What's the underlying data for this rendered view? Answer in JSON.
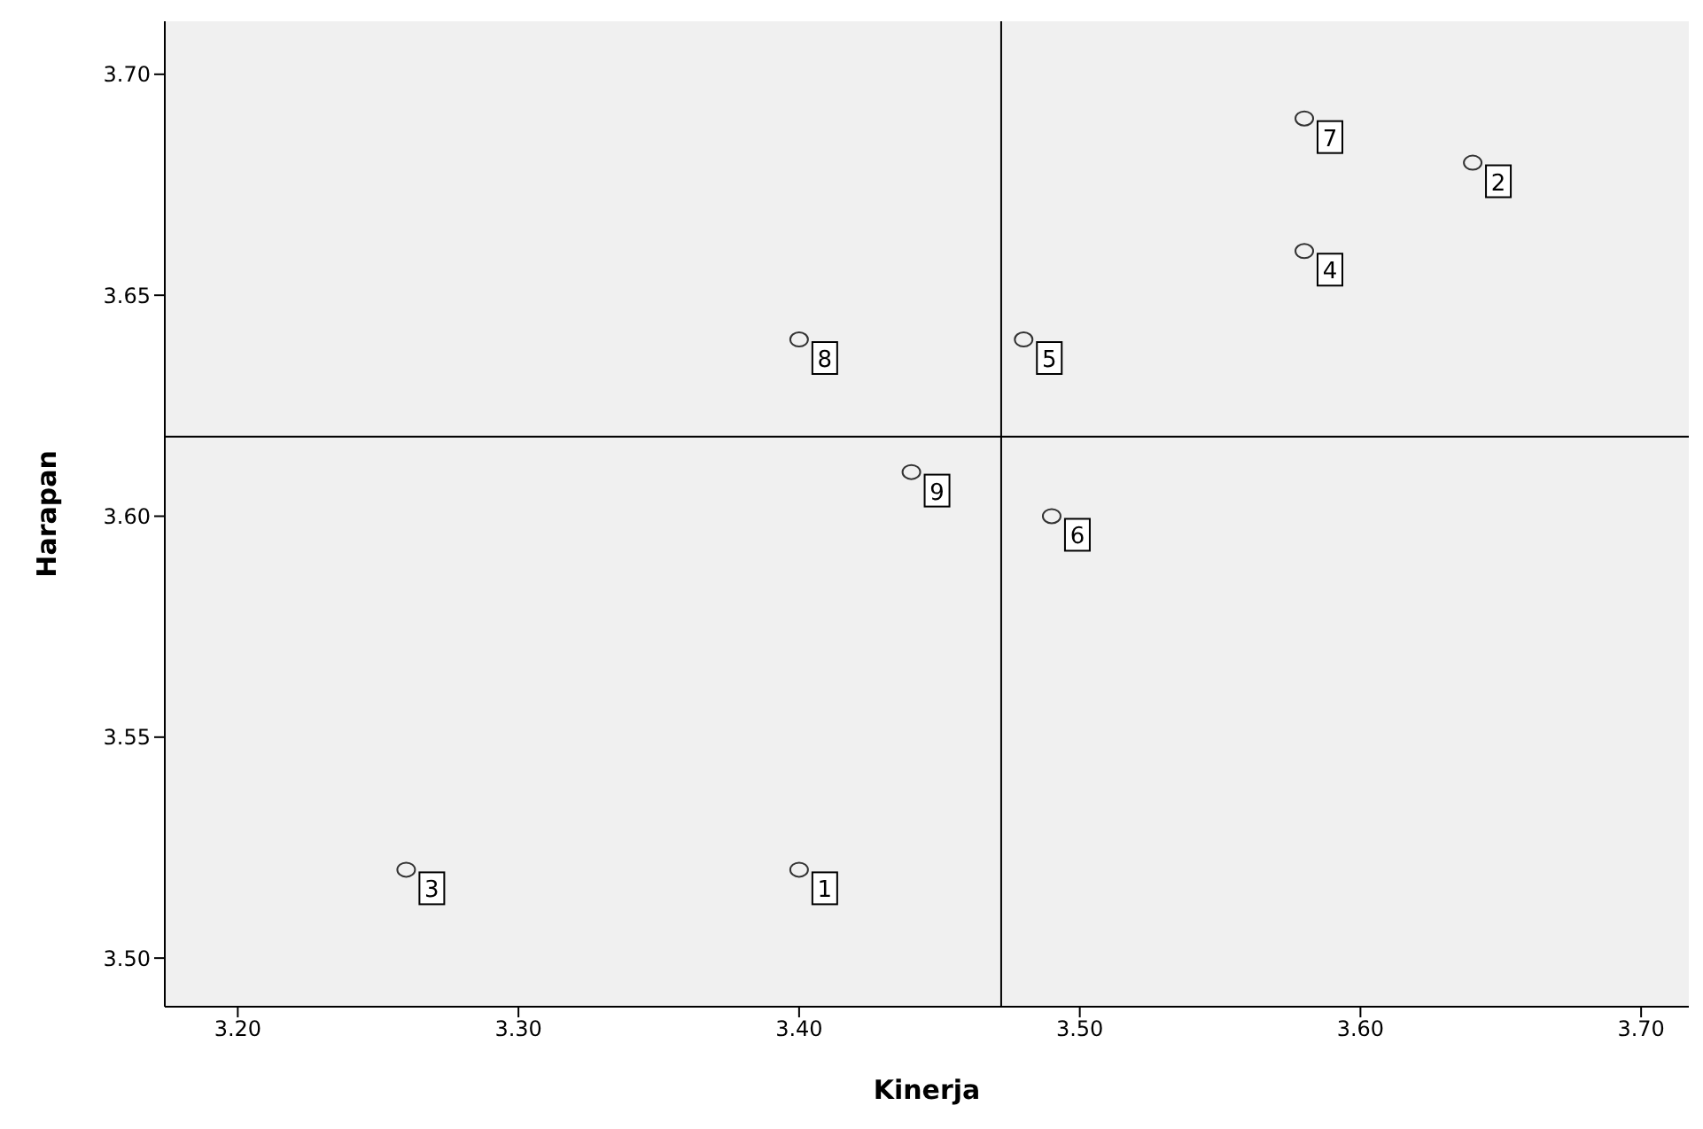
{
  "chart_data": {
    "type": "scatter",
    "xlabel": "Kinerja",
    "ylabel": "Harapan",
    "x": [
      3.4,
      3.64,
      3.26,
      3.58,
      3.48,
      3.49,
      3.58,
      3.4,
      3.44
    ],
    "series": [
      {
        "color": "#333333",
        "values": [
          3.52,
          3.68,
          3.52,
          3.66,
          3.64,
          3.6,
          3.69,
          3.64,
          3.61
        ]
      }
    ],
    "annotations": [
      {
        "text": "1",
        "x": 3.4,
        "y": 3.52
      },
      {
        "text": "2",
        "x": 3.64,
        "y": 3.68
      },
      {
        "text": "3",
        "x": 3.26,
        "y": 3.52
      },
      {
        "text": "4",
        "x": 3.58,
        "y": 3.66
      },
      {
        "text": "5",
        "x": 3.48,
        "y": 3.64
      },
      {
        "text": "6",
        "x": 3.49,
        "y": 3.6
      },
      {
        "text": "7",
        "x": 3.58,
        "y": 3.69
      },
      {
        "text": "8",
        "x": 3.4,
        "y": 3.64
      },
      {
        "text": "9",
        "x": 3.44,
        "y": 3.61
      }
    ],
    "xlim": [
      3.174,
      3.717
    ],
    "ylim": [
      3.489,
      3.712
    ],
    "xticks": [
      {
        "value": 3.2,
        "label": "3.20"
      },
      {
        "value": 3.3,
        "label": "3.30"
      },
      {
        "value": 3.4,
        "label": "3.40"
      },
      {
        "value": 3.5,
        "label": "3.50"
      },
      {
        "value": 3.6,
        "label": "3.60"
      },
      {
        "value": 3.7,
        "label": "3.70"
      }
    ],
    "yticks": [
      {
        "value": 3.5,
        "label": "3.50"
      },
      {
        "value": 3.55,
        "label": "3.55"
      },
      {
        "value": 3.6,
        "label": "3.60"
      },
      {
        "value": 3.65,
        "label": "3.65"
      },
      {
        "value": 3.7,
        "label": "3.70"
      }
    ],
    "ref_lines": [
      {
        "axis": "x",
        "value": 3.472,
        "label": null
      },
      {
        "axis": "y",
        "value": 3.618,
        "label": null
      }
    ],
    "marker": "circle",
    "grid": false,
    "legend": false
  }
}
